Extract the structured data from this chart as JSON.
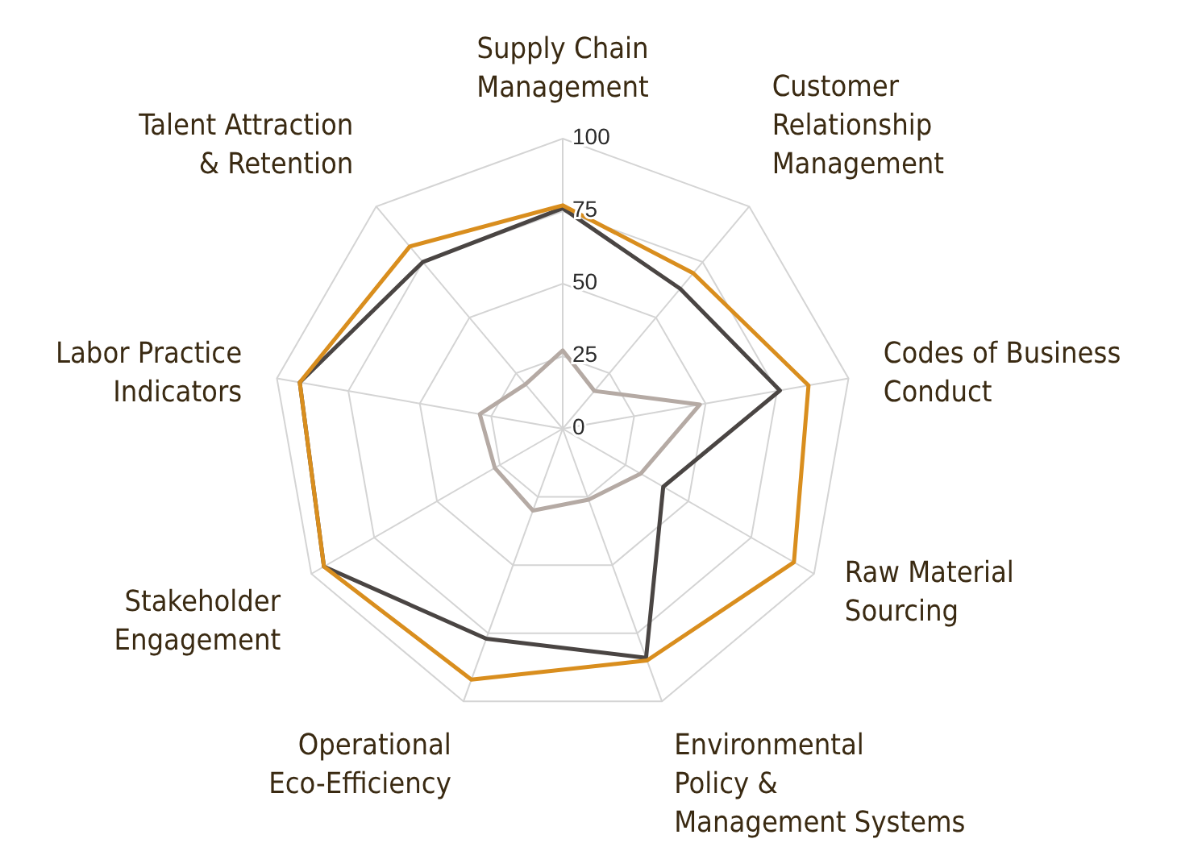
{
  "chart_data": {
    "type": "radar",
    "categories": [
      "Supply Chain\nManagement",
      "Customer\nRelationship\nManagement",
      "Codes of Business\nConduct",
      "Raw Material\nSourcing",
      "Environmental\nPolicy &\nManagement Systems",
      "Operational\nEco-Efficiency",
      "Stakeholder\nEngagement",
      "Labor Practice\nIndicators",
      "Talent Attraction\n& Retention"
    ],
    "series": [
      {
        "color": "#4a4543",
        "values": [
          76,
          63,
          76,
          40,
          84,
          77,
          95,
          92,
          75
        ]
      },
      {
        "color": "#b5aaa4",
        "values": [
          27,
          17,
          48,
          31,
          26,
          30,
          27,
          29,
          20
        ]
      },
      {
        "color": "#d98e1e",
        "values": [
          77,
          70,
          86,
          92,
          85,
          92,
          95,
          92,
          82
        ]
      }
    ],
    "ylim": [
      0,
      100
    ],
    "yticks": [
      0,
      25,
      50,
      75,
      100
    ],
    "grid": true,
    "marker": "none",
    "line_style": "solid"
  }
}
